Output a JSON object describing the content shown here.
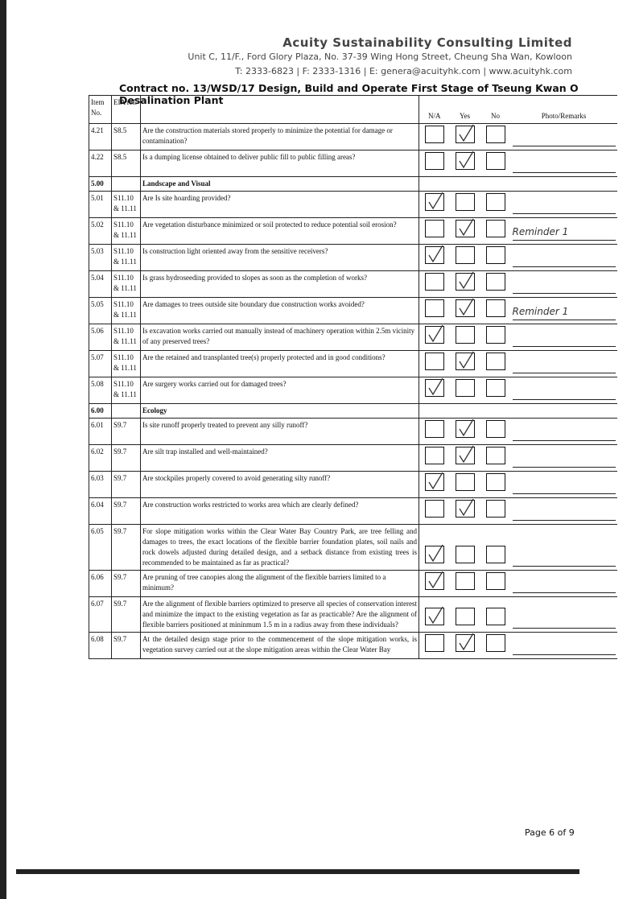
{
  "header": {
    "company": "Acuity Sustainability Consulting Limited",
    "address": "Unit C, 11/F., Ford Glory Plaza, No. 37-39 Wing Hong Street, Cheung Sha Wan, Kowloon",
    "contact": "T: 2333-6823 | F: 2333-1316 | E: genera@acuityhk.com | www.acuityhk.com"
  },
  "title": "Contract no. 13/WSD/17 Design, Build and Operate First Stage of Tseung Kwan O Desalination Plant",
  "table": {
    "columns": [
      "Item No.",
      "EIA ref.",
      "N/A",
      "Yes",
      "No",
      "Photo/Remarks"
    ],
    "rows": [
      {
        "item": "4.21",
        "ref": "S8.5",
        "text": "Are the construction materials stored properly to minimize the potential for damage or contamination?",
        "check": "Yes"
      },
      {
        "item": "4.22",
        "ref": "S8.5",
        "text": "Is a dumping license obtained to deliver public fill to public filling areas?",
        "check": "Yes"
      },
      {
        "item": "5.00",
        "section": "Landscape and Visual"
      },
      {
        "item": "5.01",
        "ref": "S11.10 & 11.11",
        "text": "Are Is site hoarding provided?",
        "check": "N/A"
      },
      {
        "item": "5.02",
        "ref": "S11.10 & 11.11",
        "text": "Are vegetation disturbance minimized or soil protected to reduce potential soil erosion?",
        "check": "Yes",
        "remark": "Reminder 1"
      },
      {
        "item": "5.03",
        "ref": "S11.10 & 11.11",
        "text": "Is construction light oriented away from the sensitive receivers?",
        "check": "N/A"
      },
      {
        "item": "5.04",
        "ref": "S11.10 & 11.11",
        "text": "Is grass hydroseeding provided to slopes as soon as the completion of works?",
        "check": "Yes"
      },
      {
        "item": "5.05",
        "ref": "S11.10 & 11.11",
        "text": "Are damages to trees outside site boundary due construction works avoided?",
        "check": "Yes",
        "remark": "Reminder 1"
      },
      {
        "item": "5.06",
        "ref": "S11.10 & 11.11",
        "text": "Is excavation works carried out manually instead of machinery operation within 2.5m vicinity of any preserved trees?",
        "check": "N/A"
      },
      {
        "item": "5.07",
        "ref": "S11.10 & 11.11",
        "text": "Are the retained and transplanted tree(s) properly protected and in good conditions?",
        "check": "Yes"
      },
      {
        "item": "5.08",
        "ref": "S11.10 & 11.11",
        "text": "Are surgery works carried out for damaged trees?",
        "check": "N/A"
      },
      {
        "item": "6.00",
        "section": "Ecology"
      },
      {
        "item": "6.01",
        "ref": "S9.7",
        "text": "Is site runoff properly treated to prevent any silly runoff?",
        "check": "Yes"
      },
      {
        "item": "6.02",
        "ref": "S9.7",
        "text": "Are silt trap installed and well-maintained?",
        "check": "Yes"
      },
      {
        "item": "6.03",
        "ref": "S9.7",
        "text": "Are stockpiles properly covered to avoid generating silty runoff?",
        "check": "N/A"
      },
      {
        "item": "6.04",
        "ref": "S9.7",
        "text": "Are construction works restricted to works area which are clearly defined?",
        "check": "Yes"
      },
      {
        "item": "6.05",
        "ref": "S9.7",
        "text": "For slope mitigation works within the Clear Water Bay Country Park, are tree felling and damages to trees, the exact locations of the flexible barrier foundation plates, soil nails and rock dowels adjusted during detailed design, and a setback distance from existing trees is recommended to be maintained as far as practical?",
        "check": "N/A"
      },
      {
        "item": "6.06",
        "ref": "S9.7",
        "text": "Are pruning of tree canopies along the alignment of the flexible barriers limited to a minimum?",
        "check": "N/A"
      },
      {
        "item": "6.07",
        "ref": "S9.7",
        "text": "Are the alignment of flexible barriers optimized to preserve all species of conservation interest and minimize the impact to the existing vegetation as far as practicable? Are the alignment of flexible barriers positioned at mininmum 1.5 m in a radius away from these individuals?",
        "check": "N/A"
      },
      {
        "item": "6.08",
        "ref": "S9.7",
        "text": "At the detailed design stage prior to the commencement of the slope mitigation works, is vegetation survey carried out at the slope mitigation areas within the Clear Water Bay",
        "check": "Yes"
      }
    ]
  },
  "footer": "Page 6 of 9"
}
